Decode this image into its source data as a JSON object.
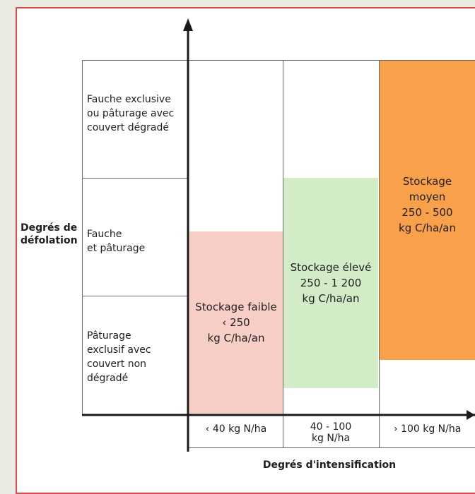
{
  "diagram": {
    "y_axis_title_line1": "Degrés de",
    "y_axis_title_line2": "défolation",
    "x_axis_title": "Degrés d'intensification",
    "rows": [
      {
        "lines": [
          "Fauche exclusive",
          "ou pâturage avec",
          "couvert dégradé"
        ]
      },
      {
        "lines": [
          "Fauche",
          "et pâturage"
        ]
      },
      {
        "lines": [
          "Pâturage",
          "exclusif avec",
          "couvert non",
          "dégradé"
        ]
      }
    ],
    "columns": [
      {
        "lines": [
          "‹ 40 kg N/ha"
        ]
      },
      {
        "lines": [
          "40 - 100",
          "kg N/ha"
        ]
      },
      {
        "lines": [
          "› 100 kg N/ha"
        ]
      }
    ],
    "zones": [
      {
        "lines": [
          "Stockage faible",
          "‹ 250",
          "kg C/ha/an"
        ],
        "color": "#f8cfc6"
      },
      {
        "lines": [
          "Stockage élevé",
          "250 - 1 200",
          "kg C/ha/an"
        ],
        "color": "#d3ecc8"
      },
      {
        "lines": [
          "Stockage",
          "moyen",
          "250 - 500",
          "kg C/ha/an"
        ],
        "color": "#f9a14a"
      }
    ],
    "colors": {
      "frame": "#e34a4a",
      "axis": "#1a1a1a",
      "grid": "#6a6a6a"
    }
  }
}
